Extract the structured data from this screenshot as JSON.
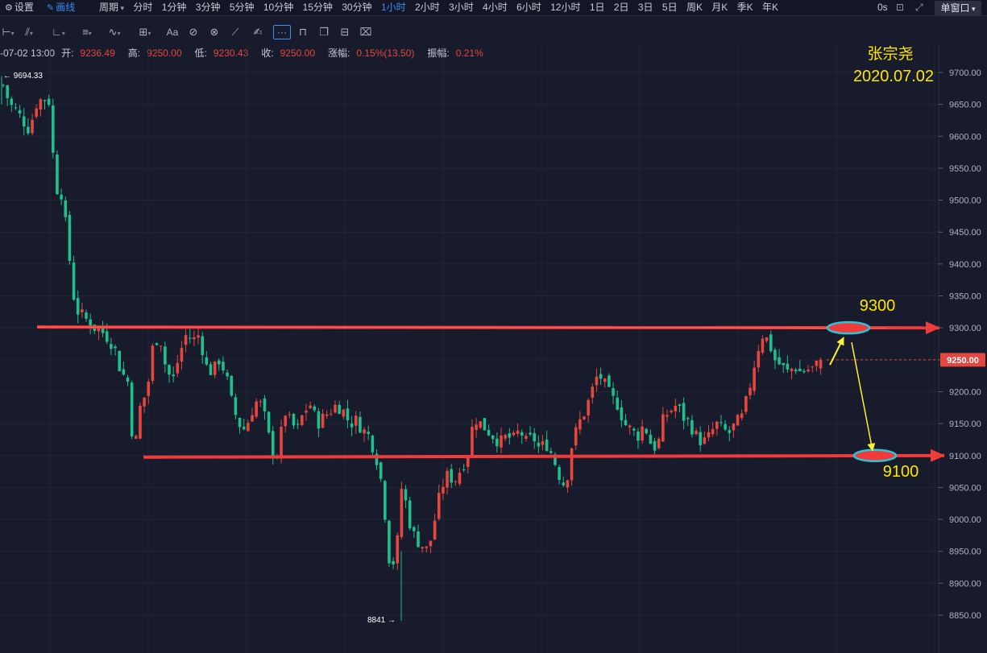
{
  "topbar": {
    "settings_label": "设置",
    "draw_label": "画线",
    "periods": [
      "周期",
      "分时",
      "1分钟",
      "3分钟",
      "5分钟",
      "10分钟",
      "15分钟",
      "30分钟",
      "1小时",
      "2小时",
      "3小时",
      "4小时",
      "6小时",
      "12小时",
      "1日",
      "2日",
      "3日",
      "5日",
      "周K",
      "月K",
      "季K",
      "年K"
    ],
    "active_period": "1小时",
    "timer_label": "0s",
    "window_label": "单窗口"
  },
  "info": {
    "datetime": "-07-02 13:00",
    "open_label": "开:",
    "open": "9236.49",
    "high_label": "高:",
    "high": "9250.00",
    "low_label": "低:",
    "low": "9230.43",
    "close_label": "收:",
    "close": "9250.00",
    "change_label": "涨幅:",
    "change": "0.15%(13.50)",
    "amplitude_label": "振幅:",
    "amplitude": "0.21%"
  },
  "annotations": {
    "author": "张宗尧",
    "date": "2020.07.02",
    "resistance_label": "9300",
    "support_label": "9100"
  },
  "colors": {
    "up": "#e5473f",
    "down": "#1fc08e",
    "background": "#171b2b",
    "trendline": "#f03a3c",
    "ellipse": "#29c5d8",
    "arrow": "#fff22a",
    "annotation": "#ffe600"
  },
  "chart_data": {
    "type": "candlestick",
    "timeframe": "1小时",
    "y_ticks": [
      9700,
      9650,
      9600,
      9550,
      9500,
      9450,
      9400,
      9350,
      9300,
      9250,
      9200,
      9150,
      9100,
      9050,
      9000,
      8950,
      8900,
      8850
    ],
    "y_tick_labels": [
      "9700.00",
      "9650.00",
      "9600.00",
      "9550.00",
      "9500.00",
      "9450.00",
      "9400.00",
      "9350.00",
      "9300.00",
      "9250.00",
      "9200.00",
      "9150.00",
      "9100.00",
      "9050.00",
      "9000.00",
      "8950.00",
      "8900.00",
      "8850.00"
    ],
    "current_price": 9250.0,
    "current_price_label": "9250.00",
    "visible_high": 9694.33,
    "visible_high_label": "← 9694.33",
    "visible_low": 8841,
    "visible_low_label": "8841 →",
    "resistance": 9300,
    "support": 9100,
    "close_path": [
      9680,
      9650,
      9640,
      9625,
      9610,
      9650,
      9660,
      9655,
      9520,
      9510,
      9420,
      9330,
      9320,
      9310,
      9300,
      9295,
      9285,
      9270,
      9230,
      9220,
      9100,
      9180,
      9200,
      9280,
      9285,
      9230,
      9220,
      9260,
      9290,
      9280,
      9290,
      9240,
      9230,
      9250,
      9230,
      9180,
      9150,
      9140,
      9170,
      9190,
      9160,
      9110,
      9100,
      9170,
      9150,
      9140,
      9170,
      9180,
      9150,
      9160,
      9170,
      9180,
      9170,
      9150,
      9155,
      9140,
      9130,
      9100,
      9050,
      8940,
      8930,
      9060,
      9000,
      8970,
      8960,
      8950,
      9000,
      9050,
      9070,
      9060,
      9080,
      9100,
      9160,
      9150,
      9140,
      9130,
      9120,
      9130,
      9125,
      9140,
      9120,
      9130,
      9110,
      9120,
      9100,
      9070,
      9050,
      9120,
      9150,
      9170,
      9200,
      9230,
      9210,
      9190,
      9180,
      9150,
      9140,
      9130,
      9150,
      9120,
      9110,
      9160,
      9170,
      9180,
      9160,
      9150,
      9130,
      9120,
      9130,
      9150,
      9140,
      9135,
      9150,
      9160,
      9200,
      9250,
      9290,
      9280,
      9250,
      9240,
      9230,
      9240,
      9230,
      9235,
      9236.49,
      9250
    ]
  }
}
